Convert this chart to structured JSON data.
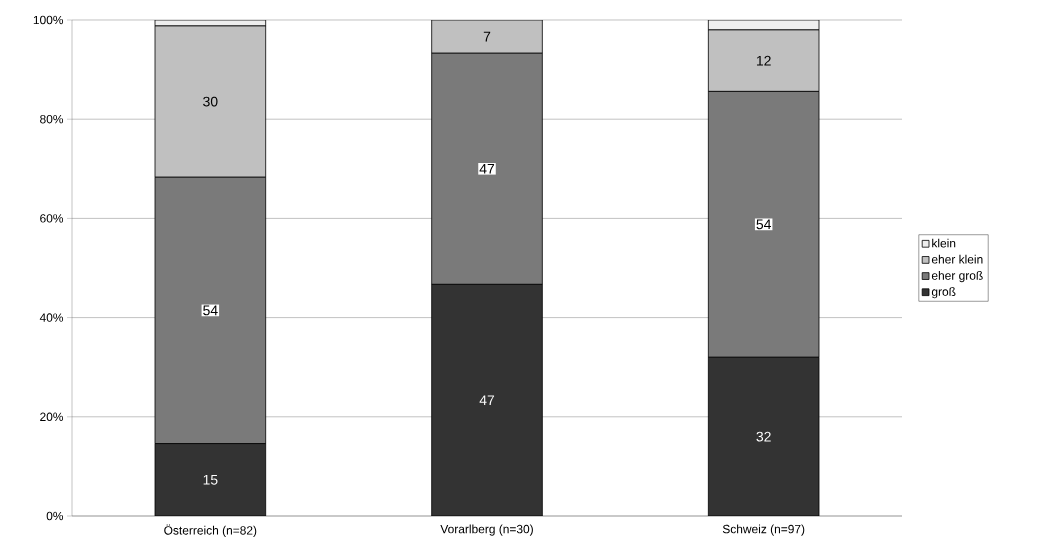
{
  "chart_data": {
    "type": "bar",
    "stacked": true,
    "categories": [
      "Österreich (n=82)",
      "Vorarlberg (n=30)",
      "Schweiz (n=97)"
    ],
    "series": [
      {
        "name": "groß",
        "color": "#333333",
        "values": [
          14.6,
          46.7,
          32.0
        ],
        "value_labels": [
          "15",
          "47",
          "32"
        ]
      },
      {
        "name": "eher groß",
        "color": "#7a7a7a",
        "values": [
          53.7,
          46.6,
          53.6
        ],
        "value_labels": [
          "54",
          "47",
          "54"
        ]
      },
      {
        "name": "eher klein",
        "color": "#c0c0c0",
        "values": [
          30.5,
          6.7,
          12.4
        ],
        "value_labels": [
          "30",
          "7",
          "12"
        ]
      },
      {
        "name": "klein",
        "color": "#eeeeee",
        "values": [
          1.2,
          0,
          2.0
        ],
        "value_labels": [
          null,
          null,
          null
        ]
      }
    ],
    "ylim": [
      0,
      100
    ],
    "yticks": [
      {
        "value": 0,
        "label": "0%"
      },
      {
        "value": 20,
        "label": "20%"
      },
      {
        "value": 40,
        "label": "40%"
      },
      {
        "value": 60,
        "label": "60%"
      },
      {
        "value": 80,
        "label": "80%"
      },
      {
        "value": 100,
        "label": "100%"
      }
    ],
    "grid": "y",
    "legend": "right"
  }
}
